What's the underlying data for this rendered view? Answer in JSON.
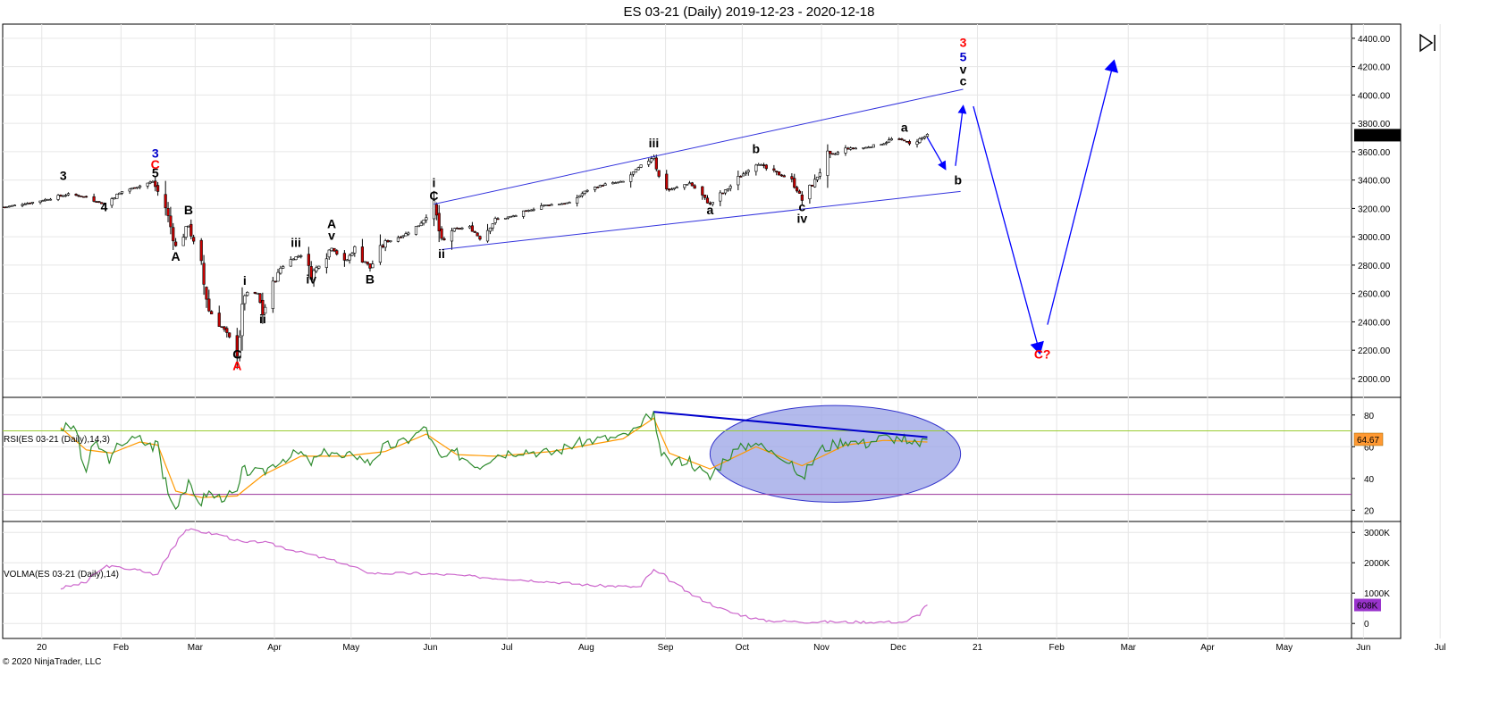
{
  "window": {
    "title": "ES 03-21 (Daily)  2019-12-23 - 2020-12-18",
    "copyright": "© 2020 NinjaTrader, LLC",
    "icon": "skip-to-end-icon"
  },
  "colors": {
    "up_candle": "#ffffff",
    "down_candle": "#cc0000",
    "wick": "#000000",
    "annotation_blue": "#0000ff",
    "annotation_red": "#ff0000",
    "rsi_line": "#2e8b2e",
    "rsi_avg": "#ff9900",
    "rsi_upper": "#99cc33",
    "rsi_lower": "#993399",
    "volma_line": "#cc66cc",
    "ellipse_fill": "#99a3e6",
    "grid": "#e6e6e6"
  },
  "chart_data": [
    {
      "type": "candlestick",
      "title": "ES 03-21 (Daily)  2019-12-23 - 2020-12-18",
      "x_tick_labels": [
        "20",
        "Feb",
        "Mar",
        "Apr",
        "May",
        "Jun",
        "Jul",
        "Aug",
        "Sep",
        "Oct",
        "Nov",
        "Dec",
        "21",
        "Feb",
        "Mar",
        "Apr",
        "May",
        "Jun",
        "Jul"
      ],
      "y_tick_labels": [
        "2000.00",
        "2200.00",
        "2400.00",
        "2600.00",
        "2800.00",
        "3000.00",
        "3200.00",
        "3400.00",
        "3600.00",
        "3800.00",
        "4000.00",
        "4200.00",
        "4400.00"
      ],
      "ylim": [
        1880,
        4500
      ],
      "last_price_label": "3716.50",
      "close_path": [
        [
          "2019-12-23",
          3210
        ],
        [
          "2020-01-02",
          3240
        ],
        [
          "2020-01-10",
          3270
        ],
        [
          "2020-01-17",
          3300
        ],
        [
          "2020-01-24",
          3280
        ],
        [
          "2020-01-31",
          3230
        ],
        [
          "2020-02-07",
          3320
        ],
        [
          "2020-02-14",
          3360
        ],
        [
          "2020-02-19",
          3390
        ],
        [
          "2020-02-24",
          3210
        ],
        [
          "2020-02-28",
          2930
        ],
        [
          "2020-03-04",
          3080
        ],
        [
          "2020-03-09",
          2760
        ],
        [
          "2020-03-12",
          2480
        ],
        [
          "2020-03-16",
          2390
        ],
        [
          "2020-03-18",
          2340
        ],
        [
          "2020-03-23",
          2190
        ],
        [
          "2020-03-26",
          2600
        ],
        [
          "2020-03-31",
          2600
        ],
        [
          "2020-04-02",
          2460
        ],
        [
          "2020-04-06",
          2640
        ],
        [
          "2020-04-09",
          2780
        ],
        [
          "2020-04-14",
          2850
        ],
        [
          "2020-04-17",
          2870
        ],
        [
          "2020-04-21",
          2730
        ],
        [
          "2020-04-29",
          2930
        ],
        [
          "2020-05-04",
          2810
        ],
        [
          "2020-05-08",
          2920
        ],
        [
          "2020-05-14",
          2780
        ],
        [
          "2020-05-20",
          2960
        ],
        [
          "2020-05-28",
          3020
        ],
        [
          "2020-06-02",
          3080
        ],
        [
          "2020-06-08",
          3220
        ],
        [
          "2020-06-11",
          2950
        ],
        [
          "2020-06-15",
          3050
        ],
        [
          "2020-06-22",
          3070
        ],
        [
          "2020-06-26",
          2990
        ],
        [
          "2020-07-02",
          3120
        ],
        [
          "2020-07-10",
          3150
        ],
        [
          "2020-07-20",
          3220
        ],
        [
          "2020-07-31",
          3240
        ],
        [
          "2020-08-07",
          3330
        ],
        [
          "2020-08-14",
          3370
        ],
        [
          "2020-08-21",
          3390
        ],
        [
          "2020-08-28",
          3500
        ],
        [
          "2020-09-02",
          3570
        ],
        [
          "2020-09-04",
          3420
        ],
        [
          "2020-09-08",
          3330
        ],
        [
          "2020-09-16",
          3380
        ],
        [
          "2020-09-24",
          3230
        ],
        [
          "2020-10-01",
          3340
        ],
        [
          "2020-10-12",
          3530
        ],
        [
          "2020-10-16",
          3480
        ],
        [
          "2020-10-26",
          3400
        ],
        [
          "2020-10-30",
          3260
        ],
        [
          "2020-11-03",
          3360
        ],
        [
          "2020-11-09",
          3560
        ],
        [
          "2020-11-16",
          3620
        ],
        [
          "2020-11-24",
          3630
        ],
        [
          "2020-12-01",
          3660
        ],
        [
          "2020-12-04",
          3690
        ],
        [
          "2020-12-09",
          3680
        ],
        [
          "2020-12-11",
          3650
        ],
        [
          "2020-12-18",
          3716.5
        ]
      ],
      "wave_labels": [
        {
          "text": "3",
          "date": "2020-01-15",
          "price": 3400,
          "color": "#000000"
        },
        {
          "text": "4",
          "date": "2020-01-31",
          "price": 3180,
          "color": "#000000"
        },
        {
          "text": "3",
          "date": "2020-02-20",
          "price": 3560,
          "color": "#0000cc"
        },
        {
          "text": "C",
          "date": "2020-02-20",
          "price": 3480,
          "color": "#ff0000"
        },
        {
          "text": "5",
          "date": "2020-02-20",
          "price": 3420,
          "color": "#000000"
        },
        {
          "text": "B",
          "date": "2020-03-04",
          "price": 3160,
          "color": "#000000"
        },
        {
          "text": "A",
          "date": "2020-02-28",
          "price": 2830,
          "color": "#000000"
        },
        {
          "text": "i",
          "date": "2020-03-26",
          "price": 2660,
          "color": "#000000"
        },
        {
          "text": "ii",
          "date": "2020-04-02",
          "price": 2390,
          "color": "#000000"
        },
        {
          "text": "C",
          "date": "2020-03-23",
          "price": 2140,
          "color": "#000000"
        },
        {
          "text": "A",
          "date": "2020-03-23",
          "price": 2060,
          "color": "#ff0000"
        },
        {
          "text": "iii",
          "date": "2020-04-15",
          "price": 2930,
          "color": "#000000"
        },
        {
          "text": "iv",
          "date": "2020-04-21",
          "price": 2670,
          "color": "#000000"
        },
        {
          "text": "A",
          "date": "2020-04-29",
          "price": 3060,
          "color": "#000000"
        },
        {
          "text": "v",
          "date": "2020-04-29",
          "price": 2980,
          "color": "#000000"
        },
        {
          "text": "B",
          "date": "2020-05-14",
          "price": 2670,
          "color": "#000000"
        },
        {
          "text": "i",
          "date": "2020-06-08",
          "price": 3350,
          "color": "#000000"
        },
        {
          "text": "C",
          "date": "2020-06-08",
          "price": 3260,
          "color": "#000000"
        },
        {
          "text": "ii",
          "date": "2020-06-11",
          "price": 2850,
          "color": "#000000"
        },
        {
          "text": "iii",
          "date": "2020-09-02",
          "price": 3630,
          "color": "#000000"
        },
        {
          "text": "a",
          "date": "2020-09-24",
          "price": 3160,
          "color": "#000000"
        },
        {
          "text": "b",
          "date": "2020-10-12",
          "price": 3590,
          "color": "#000000"
        },
        {
          "text": "c",
          "date": "2020-10-30",
          "price": 3180,
          "color": "#000000"
        },
        {
          "text": "iv",
          "date": "2020-10-30",
          "price": 3100,
          "color": "#000000"
        },
        {
          "text": "a",
          "date": "2020-12-09",
          "price": 3740,
          "color": "#000000"
        },
        {
          "text": "b",
          "date": "2020-12-30",
          "price": 3370,
          "color": "#000000"
        },
        {
          "text": "3",
          "date": "2021-01-01",
          "price": 4340,
          "color": "#ff0000"
        },
        {
          "text": "5",
          "date": "2021-01-01",
          "price": 4240,
          "color": "#0000cc"
        },
        {
          "text": "v",
          "date": "2021-01-01",
          "price": 4150,
          "color": "#000000"
        },
        {
          "text": "c",
          "date": "2021-01-01",
          "price": 4070,
          "color": "#000000"
        },
        {
          "text": "C?",
          "date": "2021-02-01",
          "price": 2140,
          "color": "#ff0000"
        }
      ],
      "trendlines": [
        {
          "from": [
            "2020-06-08",
            3230
          ],
          "to": [
            "2021-01-01",
            4040
          ]
        },
        {
          "from": [
            "2020-06-11",
            2910
          ],
          "to": [
            "2020-12-31",
            3320
          ]
        }
      ],
      "projection_arrows": [
        {
          "from": [
            "2020-12-18",
            3700
          ],
          "to": [
            "2020-12-25",
            3480
          ]
        },
        {
          "from": [
            "2020-12-29",
            3500
          ],
          "to": [
            "2021-01-01",
            3920
          ]
        },
        {
          "from": [
            "2021-01-05",
            3920
          ],
          "to": [
            "2021-01-31",
            2180
          ]
        },
        {
          "from": [
            "2021-02-03",
            2380
          ],
          "to": [
            "2021-03-01",
            4240
          ]
        }
      ]
    },
    {
      "type": "line",
      "title": "RSI(ES 03-21 (Daily),14,3)",
      "y_tick_labels": [
        "20",
        "40",
        "60",
        "80"
      ],
      "ylim": [
        14,
        90
      ],
      "last_value_label": "64.67",
      "levels": [
        70,
        30
      ],
      "series": [
        {
          "values": [
            [
              "2020-01-14",
              72
            ],
            [
              "2020-01-20",
              72
            ],
            [
              "2020-01-24",
              45
            ],
            [
              "2020-01-28",
              62
            ],
            [
              "2020-02-03",
              52
            ],
            [
              "2020-02-07",
              63
            ],
            [
              "2020-02-14",
              65
            ],
            [
              "2020-02-19",
              60
            ],
            [
              "2020-02-21",
              63
            ],
            [
              "2020-02-24",
              40
            ],
            [
              "2020-02-28",
              22
            ],
            [
              "2020-03-04",
              36
            ],
            [
              "2020-03-09",
              25
            ],
            [
              "2020-03-12",
              31
            ],
            [
              "2020-03-16",
              28
            ],
            [
              "2020-03-23",
              30
            ],
            [
              "2020-03-26",
              45
            ],
            [
              "2020-04-02",
              43
            ],
            [
              "2020-04-09",
              52
            ],
            [
              "2020-04-17",
              56
            ],
            [
              "2020-04-21",
              50
            ],
            [
              "2020-04-29",
              58
            ],
            [
              "2020-05-04",
              52
            ],
            [
              "2020-05-08",
              56
            ],
            [
              "2020-05-14",
              50
            ],
            [
              "2020-05-20",
              60
            ],
            [
              "2020-05-28",
              63
            ],
            [
              "2020-06-05",
              72
            ],
            [
              "2020-06-11",
              52
            ],
            [
              "2020-06-17",
              56
            ],
            [
              "2020-06-26",
              48
            ],
            [
              "2020-07-02",
              55
            ],
            [
              "2020-07-13",
              58
            ],
            [
              "2020-07-24",
              56
            ],
            [
              "2020-08-07",
              64
            ],
            [
              "2020-08-21",
              66
            ],
            [
              "2020-08-28",
              72
            ],
            [
              "2020-09-02",
              82
            ],
            [
              "2020-09-04",
              60
            ],
            [
              "2020-09-08",
              50
            ],
            [
              "2020-09-16",
              52
            ],
            [
              "2020-09-24",
              40
            ],
            [
              "2020-10-01",
              54
            ],
            [
              "2020-10-12",
              64
            ],
            [
              "2020-10-16",
              58
            ],
            [
              "2020-10-26",
              52
            ],
            [
              "2020-10-30",
              38
            ],
            [
              "2020-11-06",
              58
            ],
            [
              "2020-11-16",
              64
            ],
            [
              "2020-11-24",
              62
            ],
            [
              "2020-12-01",
              66
            ],
            [
              "2020-12-09",
              65
            ],
            [
              "2020-12-11",
              60
            ],
            [
              "2020-12-18",
              64.67
            ]
          ]
        },
        {
          "values": [
            [
              "2020-01-14",
              72
            ],
            [
              "2020-01-24",
              58
            ],
            [
              "2020-02-03",
              56
            ],
            [
              "2020-02-14",
              63
            ],
            [
              "2020-02-21",
              61
            ],
            [
              "2020-02-28",
              32
            ],
            [
              "2020-03-09",
              28
            ],
            [
              "2020-03-23",
              29
            ],
            [
              "2020-04-02",
              42
            ],
            [
              "2020-04-17",
              54
            ],
            [
              "2020-05-04",
              54
            ],
            [
              "2020-05-20",
              57
            ],
            [
              "2020-06-05",
              68
            ],
            [
              "2020-06-17",
              55
            ],
            [
              "2020-07-02",
              54
            ],
            [
              "2020-07-24",
              57
            ],
            [
              "2020-08-21",
              65
            ],
            [
              "2020-09-02",
              78
            ],
            [
              "2020-09-08",
              56
            ],
            [
              "2020-09-24",
              46
            ],
            [
              "2020-10-12",
              60
            ],
            [
              "2020-10-30",
              48
            ],
            [
              "2020-11-16",
              61
            ],
            [
              "2020-12-01",
              64
            ],
            [
              "2020-12-18",
              63
            ]
          ]
        }
      ],
      "divergence_line": {
        "from": [
          "2020-09-02",
          82
        ],
        "to": [
          "2020-12-18",
          66
        ]
      },
      "highlight_ellipse": {
        "from_date": "2020-09-24",
        "to_date": "2020-12-31",
        "low": 25,
        "high": 86
      }
    },
    {
      "type": "line",
      "title": "VOLMA(ES 03-21 (Daily),14)",
      "y_tick_labels": [
        "0",
        "1000K",
        "2000K",
        "3000K"
      ],
      "ylim": [
        -200,
        3300
      ],
      "last_value_label": "608K",
      "series": [
        {
          "values": [
            [
              "2020-01-14",
              1150
            ],
            [
              "2020-01-24",
              1350
            ],
            [
              "2020-02-01",
              1900
            ],
            [
              "2020-02-14",
              1750
            ],
            [
              "2020-02-21",
              1600
            ],
            [
              "2020-03-01",
              2900
            ],
            [
              "2020-03-04",
              3100
            ],
            [
              "2020-03-18",
              2900
            ],
            [
              "2020-03-26",
              2650
            ],
            [
              "2020-04-02",
              2700
            ],
            [
              "2020-04-15",
              2400
            ],
            [
              "2020-05-01",
              2050
            ],
            [
              "2020-05-15",
              1650
            ],
            [
              "2020-06-01",
              1650
            ],
            [
              "2020-06-15",
              1600
            ],
            [
              "2020-07-01",
              1500
            ],
            [
              "2020-07-20",
              1400
            ],
            [
              "2020-08-10",
              1250
            ],
            [
              "2020-08-28",
              1200
            ],
            [
              "2020-09-02",
              1750
            ],
            [
              "2020-09-06",
              1600
            ],
            [
              "2020-09-16",
              1000
            ],
            [
              "2020-10-01",
              400
            ],
            [
              "2020-10-15",
              100
            ],
            [
              "2020-11-01",
              50
            ],
            [
              "2020-12-10",
              50
            ],
            [
              "2020-12-15",
              300
            ],
            [
              "2020-12-18",
              608
            ]
          ]
        }
      ]
    }
  ]
}
